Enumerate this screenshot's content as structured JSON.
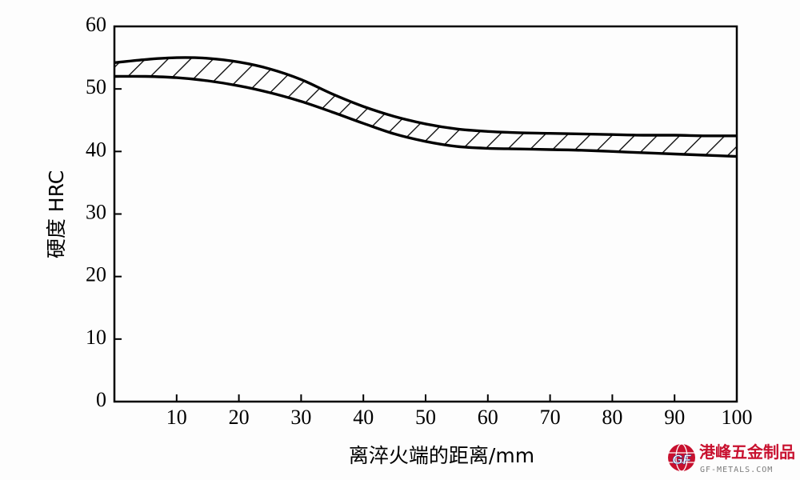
{
  "chart_data": {
    "type": "area",
    "title": "",
    "xlabel": "离淬火端的距离/mm",
    "ylabel": "硬度  HRC",
    "xlim": [
      0,
      100
    ],
    "ylim": [
      0,
      60
    ],
    "x_ticks": [
      10,
      20,
      30,
      40,
      50,
      60,
      70,
      80,
      90,
      100
    ],
    "y_ticks": [
      0,
      10,
      20,
      30,
      40,
      50,
      60
    ],
    "grid": false,
    "fill_pattern": "diagonal-hatch",
    "band": {
      "x": [
        0,
        5,
        10,
        15,
        20,
        25,
        30,
        35,
        40,
        45,
        50,
        55,
        60,
        65,
        70,
        75,
        80,
        85,
        90,
        95,
        100
      ],
      "upper": [
        54.2,
        54.7,
        55.0,
        54.9,
        54.3,
        53.2,
        51.5,
        49.2,
        47.2,
        45.6,
        44.4,
        43.6,
        43.2,
        43.0,
        42.9,
        42.8,
        42.7,
        42.6,
        42.6,
        42.5,
        42.5
      ],
      "lower": [
        52.0,
        52.0,
        51.8,
        51.3,
        50.5,
        49.4,
        48.0,
        46.3,
        44.5,
        42.8,
        41.6,
        40.8,
        40.5,
        40.4,
        40.3,
        40.2,
        40.0,
        39.8,
        39.6,
        39.4,
        39.2
      ]
    }
  },
  "watermark": {
    "text_cn": "港峰五金制品",
    "text_en": "GF-METALS.COM",
    "logo_text": "GF"
  }
}
